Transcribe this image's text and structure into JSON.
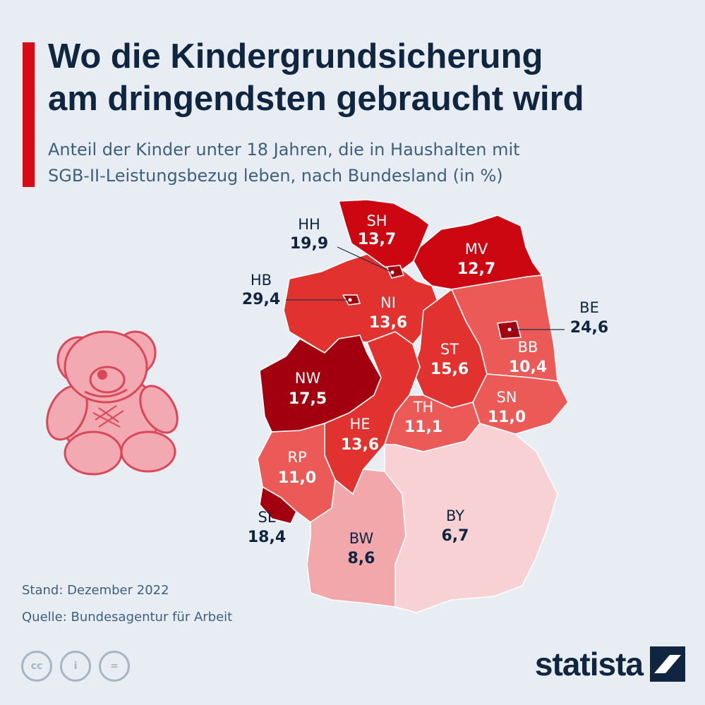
{
  "header": {
    "title_line1": "Wo die Kindergrundsicherung",
    "title_line2": "am dringendsten gebraucht wird",
    "subtitle_line1": "Anteil der Kinder unter 18 Jahren, die in Haushalten mit",
    "subtitle_line2": "SGB-II-Leistungsbezug leben, nach Bundesland (in %)"
  },
  "colors": {
    "accent": "#d40c17",
    "very_high": "#a2000e",
    "high": "#cc0712",
    "medium": "#e2322f",
    "medium_light": "#ec5a58",
    "light": "#f2a7ab",
    "lightest": "#f7d1d4",
    "teddy_fill": "#f3a9b1",
    "teddy_stroke": "#d94858",
    "text_dark": "#0f2540",
    "text_muted": "#3f5f7e",
    "icon_gray": "#a7b4c1"
  },
  "map": {
    "states": {
      "SH": {
        "code": "SH",
        "value": "13,7"
      },
      "HH": {
        "code": "HH",
        "value": "19,9"
      },
      "MV": {
        "code": "MV",
        "value": "12,7"
      },
      "HB": {
        "code": "HB",
        "value": "29,4"
      },
      "NI": {
        "code": "NI",
        "value": "13,6"
      },
      "BE": {
        "code": "BE",
        "value": "24,6"
      },
      "BB": {
        "code": "BB",
        "value": "10,4"
      },
      "ST": {
        "code": "ST",
        "value": "15,6"
      },
      "NW": {
        "code": "NW",
        "value": "17,5"
      },
      "SN": {
        "code": "SN",
        "value": "11,0"
      },
      "TH": {
        "code": "TH",
        "value": "11,1"
      },
      "HE": {
        "code": "HE",
        "value": "13,6"
      },
      "RP": {
        "code": "RP",
        "value": "11,0"
      },
      "SL": {
        "code": "SL",
        "value": "18,4"
      },
      "BW": {
        "code": "BW",
        "value": "8,6"
      },
      "BY": {
        "code": "BY",
        "value": "6,7"
      }
    }
  },
  "footer": {
    "stand": "Stand: Dezember 2022",
    "quelle": "Quelle: Bundesagentur für Arbeit"
  },
  "license": {
    "cc": "cc",
    "by": "i",
    "nd": "="
  },
  "brand": {
    "name": "statista"
  }
}
